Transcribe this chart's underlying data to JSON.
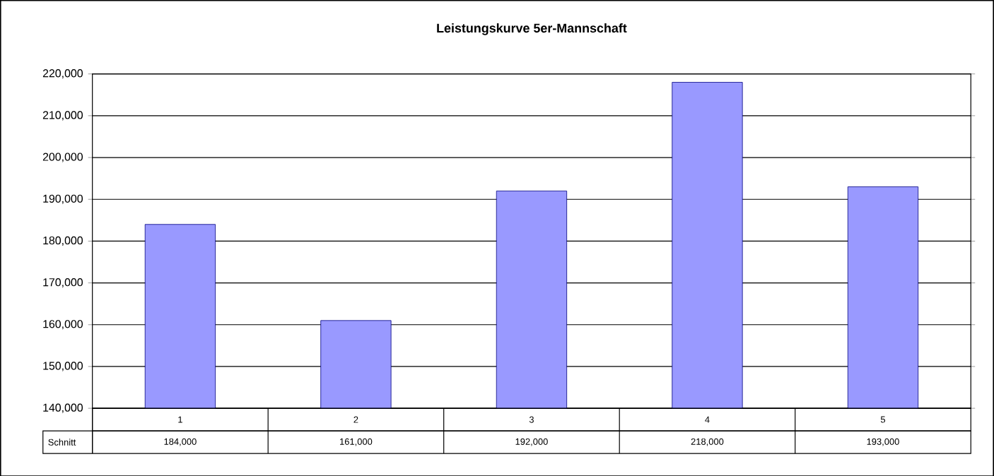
{
  "chart_data": {
    "type": "bar",
    "title": "Leistungskurve 5er-Mannschaft",
    "categories": [
      "1",
      "2",
      "3",
      "4",
      "5"
    ],
    "series": [
      {
        "name": "Schnitt",
        "color": "#9999ff",
        "values": [
          184000,
          161000,
          192000,
          218000,
          193000
        ],
        "value_labels": [
          "184,000",
          "161,000",
          "192,000",
          "218,000",
          "193,000"
        ]
      }
    ],
    "ylim": [
      140000,
      220000
    ],
    "yticks": [
      {
        "value": 140000,
        "label": "140,000"
      },
      {
        "value": 150000,
        "label": "150,000"
      },
      {
        "value": 160000,
        "label": "160,000"
      },
      {
        "value": 170000,
        "label": "170,000"
      },
      {
        "value": 180000,
        "label": "180,000"
      },
      {
        "value": 190000,
        "label": "190,000"
      },
      {
        "value": 200000,
        "label": "200,000"
      },
      {
        "value": 210000,
        "label": "210,000"
      },
      {
        "value": 220000,
        "label": "220,000"
      }
    ],
    "grid": "y",
    "legend": false
  }
}
